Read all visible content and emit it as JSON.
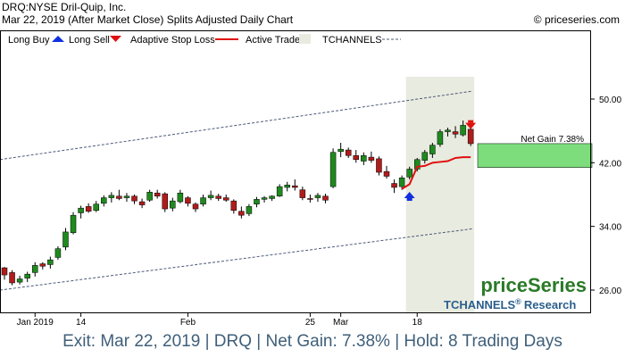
{
  "header": {
    "line1": "DRQ:NYSE Dril-Quip, Inc.",
    "line2": "Mar 22, 2019 (After Market Close)  Splits Adjusted Daily Chart",
    "copyright": "© priceseries.com"
  },
  "legend": {
    "long_buy": "Long Buy",
    "long_sell": "Long Sell",
    "adaptive_stop": "Adaptive Stop Loss",
    "active_trade": "Active Trade",
    "tchannels": "TCHANNELS"
  },
  "watermark": {
    "brand": "priceSeries",
    "research": "TCHANNELS",
    "reg": "®",
    "research_suffix": "Research"
  },
  "net_gain_label": "Net Gain 7.38%",
  "footer": "Exit: Mar 22, 2019 | DRQ | Net Gain: 7.38% | Hold: 8 Trading Days",
  "colors": {
    "up_candle": "#1f8a1f",
    "down_candle": "#b01c1c",
    "stop_line": "#e01010",
    "active_trade_bg": "#e8ebdf",
    "gain_box": "#7ddd7d",
    "channel": "#4a5a78",
    "buy_arrow": "#1030e0",
    "sell_arrow": "#e01010",
    "footer_text": "#3f5f7a"
  },
  "chart_data": {
    "type": "candlestick",
    "y_axis": {
      "ticks": [
        26,
        34,
        42,
        50
      ],
      "range": [
        24,
        54
      ]
    },
    "x_axis": {
      "labels": [
        {
          "text": "Jan 2019",
          "index": 4
        },
        {
          "text": "14",
          "index": 10
        },
        {
          "text": "Feb",
          "index": 24
        },
        {
          "text": "25",
          "index": 40
        },
        {
          "text": "Mar",
          "index": 44
        },
        {
          "text": "18",
          "index": 54
        }
      ]
    },
    "ohlc": [
      [
        28.8,
        28.9,
        27.3,
        27.9
      ],
      [
        28.2,
        28.5,
        26.6,
        26.9
      ],
      [
        27.0,
        27.8,
        26.7,
        27.4
      ],
      [
        27.5,
        28.3,
        27.0,
        28.0
      ],
      [
        28.2,
        29.5,
        27.7,
        29.1
      ],
      [
        29.3,
        29.5,
        28.6,
        29.0
      ],
      [
        29.2,
        30.2,
        28.7,
        29.8
      ],
      [
        30.1,
        31.5,
        29.8,
        31.2
      ],
      [
        31.4,
        33.8,
        31.0,
        33.3
      ],
      [
        33.2,
        35.8,
        33.0,
        35.4
      ],
      [
        35.7,
        36.6,
        35.0,
        36.3
      ],
      [
        36.5,
        36.9,
        35.7,
        35.9
      ],
      [
        36.0,
        37.2,
        35.8,
        36.8
      ],
      [
        36.9,
        37.9,
        36.5,
        37.6
      ],
      [
        37.6,
        38.3,
        37.0,
        37.9
      ],
      [
        37.8,
        38.6,
        37.3,
        37.5
      ],
      [
        37.6,
        38.2,
        37.1,
        37.8
      ],
      [
        37.8,
        38.0,
        36.8,
        37.2
      ],
      [
        37.1,
        37.5,
        36.3,
        36.7
      ],
      [
        37.3,
        38.6,
        37.1,
        38.3
      ],
      [
        38.2,
        38.6,
        37.5,
        37.8
      ],
      [
        38.1,
        38.3,
        35.8,
        36.2
      ],
      [
        36.3,
        37.6,
        35.9,
        37.2
      ],
      [
        37.1,
        38.6,
        36.9,
        38.2
      ],
      [
        37.6,
        37.8,
        36.5,
        36.9
      ],
      [
        36.8,
        37.0,
        35.8,
        36.2
      ],
      [
        36.8,
        38.0,
        36.5,
        37.6
      ],
      [
        37.6,
        38.5,
        37.3,
        37.9
      ],
      [
        37.8,
        38.1,
        37.2,
        37.5
      ],
      [
        37.6,
        38.0,
        37.1,
        37.3
      ],
      [
        37.2,
        37.4,
        35.6,
        36.0
      ],
      [
        35.9,
        36.5,
        35.0,
        35.4
      ],
      [
        35.6,
        36.8,
        35.3,
        36.5
      ],
      [
        36.8,
        37.7,
        36.4,
        37.4
      ],
      [
        37.4,
        37.8,
        37.0,
        37.6
      ],
      [
        37.5,
        37.9,
        37.2,
        37.8
      ],
      [
        37.8,
        39.3,
        37.7,
        39.0
      ],
      [
        38.9,
        39.6,
        38.4,
        39.2
      ],
      [
        39.1,
        39.9,
        38.5,
        38.9
      ],
      [
        38.6,
        39.0,
        37.3,
        37.6
      ],
      [
        37.5,
        38.0,
        37.0,
        37.4
      ],
      [
        37.6,
        38.2,
        37.1,
        37.9
      ],
      [
        37.8,
        38.1,
        36.9,
        37.3
      ],
      [
        39.0,
        43.8,
        38.8,
        43.3
      ],
      [
        43.4,
        44.5,
        42.7,
        43.7
      ],
      [
        43.6,
        43.9,
        42.6,
        42.9
      ],
      [
        42.9,
        43.6,
        42.0,
        42.4
      ],
      [
        42.2,
        43.3,
        41.7,
        42.9
      ],
      [
        42.7,
        43.4,
        42.0,
        42.3
      ],
      [
        42.5,
        42.8,
        40.4,
        40.8
      ],
      [
        40.9,
        41.6,
        40.0,
        40.3
      ],
      [
        39.4,
        39.9,
        38.2,
        38.9
      ],
      [
        39.0,
        40.4,
        38.6,
        40.1
      ],
      [
        40.2,
        41.5,
        39.9,
        41.2
      ],
      [
        41.2,
        42.6,
        40.9,
        42.4
      ],
      [
        42.3,
        43.6,
        41.9,
        43.3
      ],
      [
        43.1,
        44.5,
        42.6,
        44.2
      ],
      [
        44.3,
        46.2,
        44.0,
        45.9
      ],
      [
        45.9,
        46.4,
        45.3,
        46.1
      ],
      [
        45.9,
        46.6,
        45.1,
        45.6
      ],
      [
        45.5,
        47.3,
        45.3,
        46.7
      ],
      [
        46.2,
        46.5,
        44.1,
        44.4
      ]
    ],
    "adaptive_stop": [
      {
        "index": 52,
        "value": 38.7
      },
      {
        "index": 53,
        "value": 39.3
      },
      {
        "index": 54,
        "value": 41.5
      },
      {
        "index": 55,
        "value": 41.6
      },
      {
        "index": 56,
        "value": 42.0
      },
      {
        "index": 57,
        "value": 42.1
      },
      {
        "index": 58,
        "value": 42.2
      },
      {
        "index": 59,
        "value": 42.6
      },
      {
        "index": 60,
        "value": 42.7
      },
      {
        "index": 61,
        "value": 42.7
      }
    ],
    "tchannel_upper": {
      "start": {
        "index": 0,
        "value": 42.4
      },
      "end": {
        "index": 61,
        "value": 51.0
      }
    },
    "tchannel_lower": {
      "start": {
        "index": 0,
        "value": 26.0
      },
      "end": {
        "index": 61,
        "value": 33.7
      }
    },
    "entry": {
      "index": 53,
      "price": 38.0
    },
    "exit": {
      "index": 61,
      "price": 46.9
    },
    "net_gain_range": [
      41.4,
      44.4
    ],
    "grid": false
  }
}
